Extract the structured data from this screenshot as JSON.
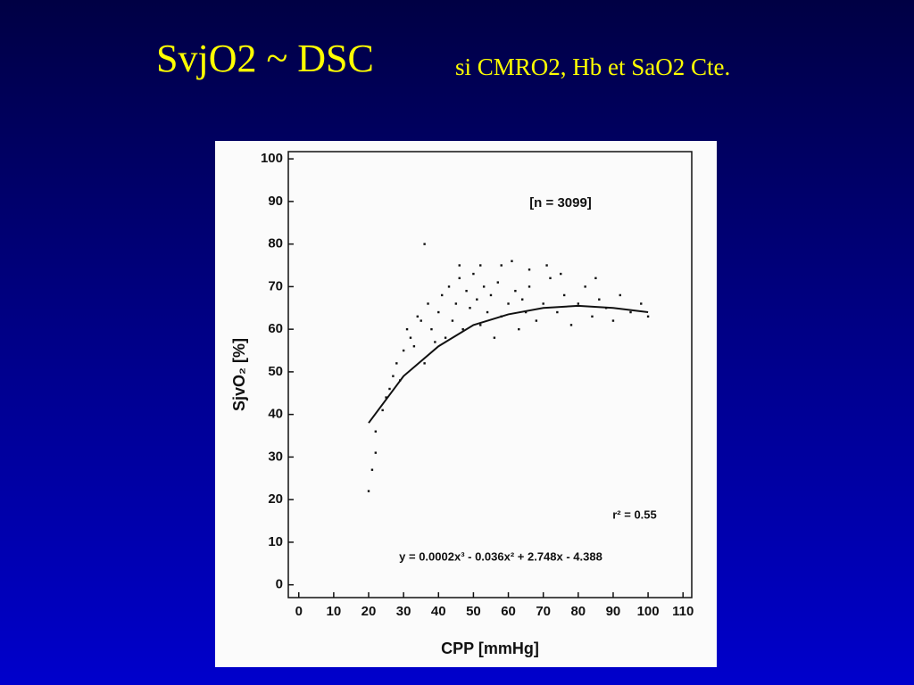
{
  "slide": {
    "title": "SvjO2 ~ DSC",
    "subtitle": "si CMRO2, Hb et SaO2 Cte."
  },
  "chart_data": {
    "type": "scatter",
    "xlabel": "CPP [mmHg]",
    "ylabel": "SjvO₂ [%]",
    "annotations": [
      "[n = 3099]",
      "r² = 0.55",
      "y = 0.0002x³ - 0.036x² + 2.748x - 4.388"
    ],
    "xlim": [
      -3,
      112.5
    ],
    "ylim": [
      -3,
      101.7
    ],
    "xticks": [
      0,
      10,
      20,
      30,
      40,
      50,
      60,
      70,
      80,
      90,
      100,
      110
    ],
    "yticks": [
      0,
      10,
      20,
      30,
      40,
      50,
      60,
      70,
      80,
      90,
      100
    ],
    "series": [
      {
        "color": "#111111",
        "x": [
          20,
          21,
          22,
          22,
          24,
          25,
          26,
          27,
          28,
          29,
          30,
          31,
          32,
          33,
          34,
          35,
          36,
          37,
          38,
          39,
          40,
          41,
          42,
          43,
          44,
          45,
          46,
          47,
          48,
          49,
          50,
          51,
          52,
          53,
          54,
          55,
          56,
          57,
          58,
          60,
          62,
          63,
          64,
          65,
          66,
          68,
          70,
          72,
          74,
          76,
          78,
          80,
          82,
          84,
          86,
          88,
          90,
          92,
          95,
          98,
          100,
          36,
          46,
          52,
          58,
          66,
          75,
          85,
          61,
          71
        ],
        "values": [
          22,
          27,
          31,
          36,
          41,
          44,
          46,
          49,
          52,
          48,
          55,
          60,
          58,
          56,
          63,
          62,
          52,
          66,
          60,
          57,
          64,
          68,
          58,
          70,
          62,
          66,
          72,
          60,
          69,
          65,
          73,
          67,
          61,
          70,
          64,
          68,
          58,
          71,
          63,
          66,
          69,
          60,
          67,
          64,
          70,
          62,
          66,
          72,
          64,
          68,
          61,
          66,
          70,
          63,
          67,
          65,
          62,
          68,
          64,
          66,
          63,
          80,
          75,
          75,
          75,
          74,
          73,
          72,
          76,
          75
        ]
      }
    ],
    "fit_line": {
      "color": "#111111",
      "x": [
        20,
        30,
        40,
        50,
        60,
        70,
        80,
        90,
        100
      ],
      "values": [
        38,
        49,
        56,
        61,
        63.5,
        65,
        65.5,
        65,
        64
      ]
    }
  }
}
